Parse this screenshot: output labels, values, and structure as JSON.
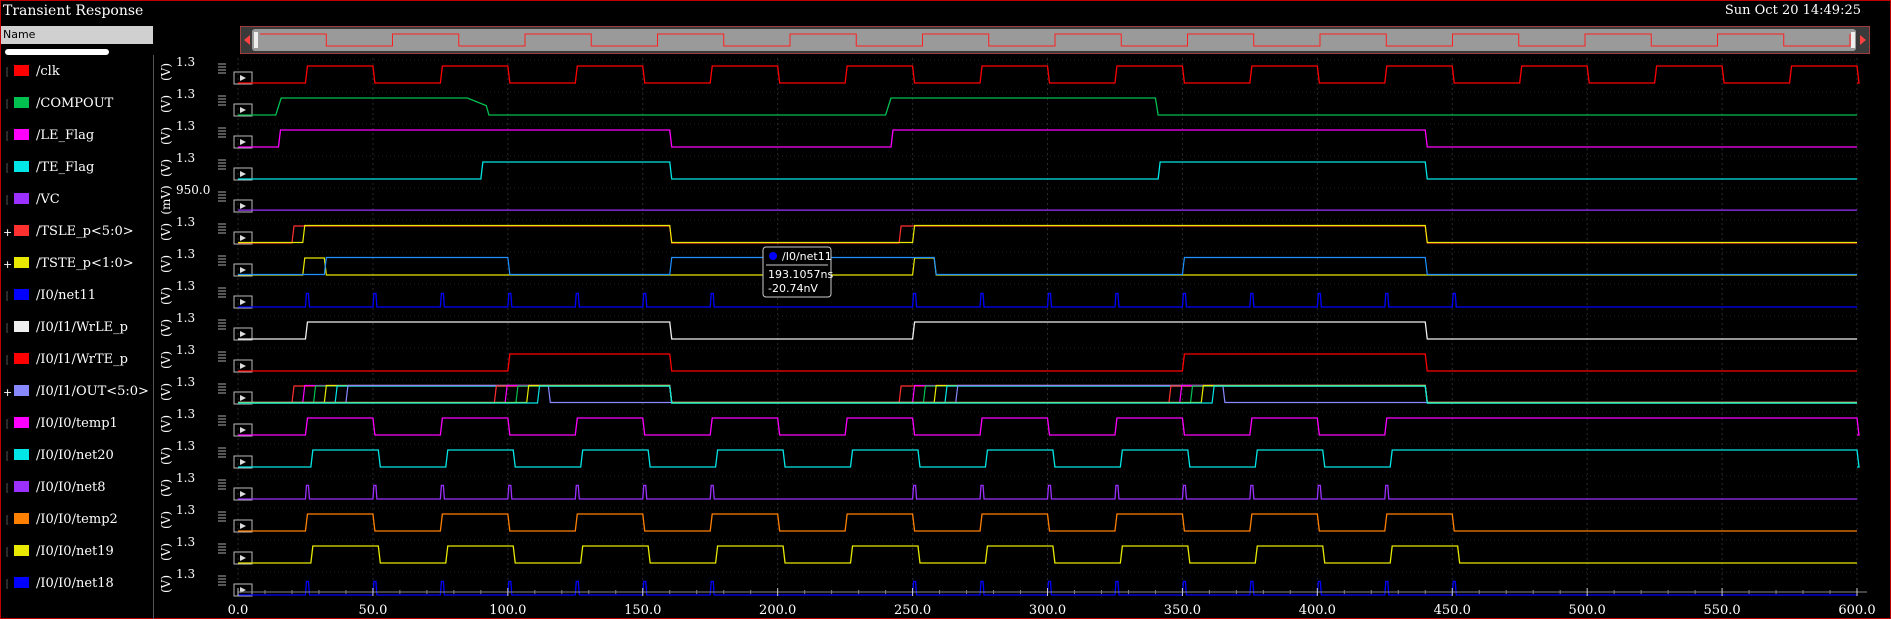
{
  "window": {
    "title": "Transient Response",
    "datetime": "Sun Oct 20 14:49:25"
  },
  "sidebar": {
    "header": "Name"
  },
  "tooltip": {
    "signal": "/I0/net11",
    "x": "193.1057ns",
    "y": "-20.74nV"
  },
  "chart_data": {
    "type": "line",
    "x_ticks": [
      "0.0",
      "50.0",
      "100.0",
      "150.0",
      "200.0",
      "250.0",
      "300.0",
      "350.0",
      "400.0",
      "450.0",
      "500.0",
      "550.0",
      "600.0"
    ],
    "xlim": [
      0,
      600
    ],
    "grid": true,
    "signals": [
      {
        "name": "/clk",
        "color": "#ff0000",
        "y_label": "(V)",
        "tick": "1.3",
        "kind": "digital",
        "init": 0,
        "edges": [
          25,
          50,
          75,
          100,
          125,
          150,
          175,
          200,
          225,
          250,
          275,
          300,
          325,
          350,
          375,
          400,
          425,
          450,
          475,
          500,
          525,
          550,
          575,
          600
        ]
      },
      {
        "name": "/COMPOUT",
        "color": "#00c050",
        "y_label": "(V)",
        "tick": "1.3",
        "kind": "points",
        "points": [
          [
            0,
            0
          ],
          [
            14,
            0
          ],
          [
            16,
            1
          ],
          [
            85,
            1
          ],
          [
            92,
            0.55
          ],
          [
            93,
            0
          ],
          [
            240,
            0
          ],
          [
            242,
            1
          ],
          [
            340,
            1
          ],
          [
            341,
            0
          ],
          [
            600,
            0
          ]
        ]
      },
      {
        "name": "/LE_Flag",
        "color": "#ff00ff",
        "y_label": "(V)",
        "tick": "1.3",
        "kind": "digital",
        "init": 0,
        "edges": [
          15,
          160,
          242,
          440
        ]
      },
      {
        "name": "/TE_Flag",
        "color": "#00e5e5",
        "y_label": "(V)",
        "tick": "1.3",
        "kind": "digital",
        "init": 0,
        "edges": [
          90,
          160,
          341,
          440
        ]
      },
      {
        "name": "/VC",
        "color": "#9b30ff",
        "y_label": "(mV)",
        "tick": "950.0",
        "kind": "flat",
        "level": 0.05
      },
      {
        "name": "/TSLE_p<5:0>",
        "color": "#ff3030",
        "y_label": "(V)",
        "tick": "1.3",
        "kind": "bus",
        "group": true,
        "tracks": [
          {
            "color": "#ff3030",
            "edges": [
              20,
              160,
              245,
              440
            ]
          },
          {
            "color": "#e8e800",
            "edges": [
              24,
              160,
              250,
              440
            ]
          }
        ]
      },
      {
        "name": "/TSTE_p<1:0>",
        "color": "#e8e800",
        "y_label": "(V)",
        "tick": "1.3",
        "kind": "bus",
        "group": true,
        "tracks": [
          {
            "color": "#e8e800",
            "edges": [
              24,
              32,
              250,
              258
            ]
          },
          {
            "color": "#1e90ff",
            "edges": [
              32,
              100,
              160,
              258,
              350,
              440
            ]
          }
        ]
      },
      {
        "name": "/I0/net11",
        "color": "#0000ff",
        "y_label": "(V)",
        "tick": "1.3",
        "kind": "pulses",
        "pulses": [
          25,
          50,
          75,
          100,
          125,
          150,
          175,
          250,
          275,
          300,
          325,
          350,
          375,
          400,
          425,
          450
        ],
        "width": 2
      },
      {
        "name": "/I0/I1/WrLE_p",
        "color": "#f0f0f0",
        "y_label": "(V)",
        "tick": "1.3",
        "kind": "digital",
        "init": 0,
        "edges": [
          25,
          160,
          250,
          440
        ]
      },
      {
        "name": "/I0/I1/WrTE_p",
        "color": "#ff0000",
        "y_label": "(V)",
        "tick": "1.3",
        "kind": "digital",
        "init": 0,
        "edges": [
          100,
          160,
          350,
          440
        ]
      },
      {
        "name": "/I0/I1/OUT<5:0>",
        "color": "#8888ff",
        "y_label": "(V)",
        "tick": "1.3",
        "kind": "bus",
        "group": true,
        "tracks": [
          {
            "color": "#ff3030",
            "edges": [
              20,
              160,
              245,
              440
            ]
          },
          {
            "color": "#ff00ff",
            "edges": [
              24,
              160,
              250,
              440
            ]
          },
          {
            "color": "#00c050",
            "edges": [
              28,
              160,
              254,
              440
            ]
          },
          {
            "color": "#e8e800",
            "edges": [
              32,
              160,
              258,
              440
            ]
          },
          {
            "color": "#00e5e5",
            "edges": [
              36,
              160,
              262,
              440
            ]
          },
          {
            "color": "#8888ff",
            "edges": [
              40,
              115,
              266,
              365
            ]
          },
          {
            "color": "#ff3030",
            "edges": [
              95,
              160,
              345,
              440
            ]
          },
          {
            "color": "#ff00ff",
            "edges": [
              99,
              160,
              349,
              440
            ]
          },
          {
            "color": "#00c050",
            "edges": [
              103,
              160,
              353,
              440
            ]
          },
          {
            "color": "#e8e800",
            "edges": [
              107,
              160,
              357,
              440
            ]
          },
          {
            "color": "#00e5e5",
            "edges": [
              111,
              160,
              361,
              440
            ]
          }
        ]
      },
      {
        "name": "/I0/I0/temp1",
        "color": "#ff00ff",
        "y_label": "(V)",
        "tick": "1.3",
        "kind": "digital",
        "init": 0,
        "edges": [
          25,
          50,
          75,
          100,
          125,
          150,
          175,
          200,
          225,
          250,
          275,
          300,
          325,
          350,
          375,
          400,
          425,
          600
        ]
      },
      {
        "name": "/I0/I0/net20",
        "color": "#00e5e5",
        "y_label": "(V)",
        "tick": "1.3",
        "kind": "digital",
        "init": 0,
        "edges": [
          27,
          52,
          77,
          102,
          127,
          152,
          177,
          202,
          227,
          252,
          277,
          302,
          327,
          352,
          377,
          402,
          427,
          600
        ]
      },
      {
        "name": "/I0/I0/net8",
        "color": "#9b30ff",
        "y_label": "(V)",
        "tick": "1.3",
        "kind": "pulses",
        "pulses": [
          25,
          50,
          75,
          100,
          125,
          150,
          175,
          250,
          275,
          300,
          325,
          350,
          375,
          400,
          425
        ],
        "width": 2
      },
      {
        "name": "/I0/I0/temp2",
        "color": "#ff8000",
        "y_label": "(V)",
        "tick": "1.3",
        "kind": "digital",
        "init": 0,
        "edges": [
          25,
          50,
          75,
          100,
          125,
          150,
          175,
          200,
          225,
          250,
          275,
          300,
          325,
          350,
          375,
          400,
          425,
          450
        ]
      },
      {
        "name": "/I0/I0/net19",
        "color": "#e8e800",
        "y_label": "(V)",
        "tick": "1.3",
        "kind": "digital",
        "init": 0,
        "edges": [
          27,
          52,
          77,
          102,
          127,
          152,
          177,
          202,
          227,
          252,
          277,
          302,
          327,
          352,
          377,
          402,
          427,
          452
        ]
      },
      {
        "name": "/I0/I0/net18",
        "color": "#0000ff",
        "y_label": "(V)",
        "tick": "1.3",
        "kind": "pulses",
        "pulses": [
          25,
          50,
          75,
          100,
          125,
          150,
          175,
          250,
          275,
          300,
          325,
          350,
          375,
          400,
          425,
          450
        ],
        "width": 2
      }
    ]
  }
}
